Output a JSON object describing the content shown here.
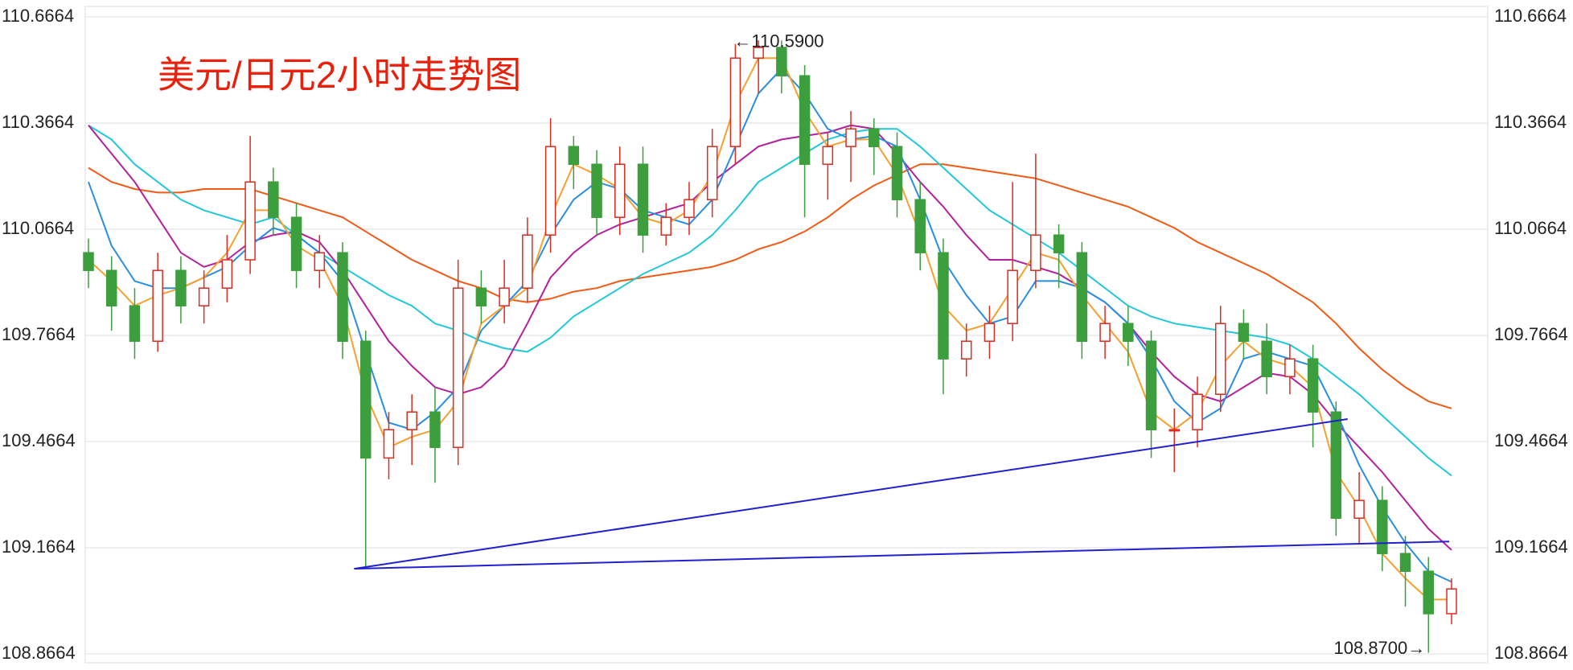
{
  "chart_data": {
    "type": "candlestick",
    "title": "美元/日元2小时走势图",
    "ylim": [
      108.8664,
      110.6664
    ],
    "yticks": [
      108.8664,
      109.1664,
      109.4664,
      109.7664,
      110.0664,
      110.3664,
      110.6664
    ],
    "xlim": [
      0,
      59
    ],
    "grid": true,
    "up_color": "#e02a1e",
    "down_color": "#3c9e3c",
    "open": [
      110.0,
      109.95,
      109.85,
      109.75,
      109.95,
      109.85,
      109.9,
      109.98,
      110.2,
      110.1,
      109.95,
      110.0,
      109.75,
      109.42,
      109.5,
      109.55,
      109.45,
      109.9,
      109.85,
      109.9,
      110.05,
      110.3,
      110.25,
      110.1,
      110.25,
      110.05,
      110.1,
      110.15,
      110.3,
      110.55,
      110.58,
      110.5,
      110.25,
      110.3,
      110.35,
      110.3,
      110.15,
      110.0,
      109.7,
      109.75,
      109.8,
      109.95,
      110.05,
      110.0,
      109.75,
      109.8,
      109.75,
      109.5,
      109.5,
      109.6,
      109.8,
      109.75,
      109.65,
      109.7,
      109.55,
      109.25,
      109.3,
      109.15,
      109.1,
      108.98
    ],
    "high": [
      110.04,
      109.99,
      109.9,
      110.0,
      109.99,
      109.95,
      110.05,
      110.33,
      110.24,
      110.14,
      110.05,
      110.03,
      109.78,
      109.55,
      109.6,
      109.62,
      109.98,
      109.95,
      109.98,
      110.1,
      110.38,
      110.33,
      110.29,
      110.3,
      110.3,
      110.14,
      110.2,
      110.35,
      110.59,
      110.6,
      110.6,
      110.53,
      110.34,
      110.4,
      110.38,
      110.34,
      110.2,
      110.04,
      109.8,
      109.85,
      110.2,
      110.28,
      110.08,
      110.03,
      109.85,
      109.85,
      109.78,
      109.56,
      109.65,
      109.85,
      109.84,
      109.8,
      109.74,
      109.74,
      109.58,
      109.38,
      109.34,
      109.2,
      109.14,
      109.08
    ],
    "low": [
      109.9,
      109.78,
      109.7,
      109.72,
      109.8,
      109.8,
      109.86,
      109.94,
      110.05,
      109.9,
      109.9,
      109.7,
      109.11,
      109.36,
      109.4,
      109.35,
      109.4,
      109.8,
      109.8,
      109.86,
      110.0,
      110.18,
      110.05,
      110.05,
      110.0,
      110.02,
      110.05,
      110.1,
      110.25,
      110.45,
      110.45,
      110.1,
      110.15,
      110.2,
      110.22,
      110.1,
      109.95,
      109.6,
      109.65,
      109.7,
      109.75,
      109.9,
      109.9,
      109.7,
      109.7,
      109.68,
      109.42,
      109.38,
      109.45,
      109.55,
      109.7,
      109.6,
      109.6,
      109.45,
      109.2,
      109.18,
      109.1,
      109.0,
      108.87,
      108.95
    ],
    "close": [
      109.95,
      109.85,
      109.75,
      109.95,
      109.85,
      109.9,
      109.98,
      110.2,
      110.1,
      109.95,
      110.0,
      109.75,
      109.42,
      109.5,
      109.55,
      109.45,
      109.9,
      109.85,
      109.9,
      110.05,
      110.3,
      110.25,
      110.1,
      110.25,
      110.05,
      110.1,
      110.15,
      110.3,
      110.55,
      110.58,
      110.5,
      110.25,
      110.3,
      110.35,
      110.3,
      110.15,
      110.0,
      109.7,
      109.75,
      109.8,
      109.95,
      110.05,
      110.0,
      109.75,
      109.8,
      109.75,
      109.5,
      109.5,
      109.6,
      109.8,
      109.75,
      109.65,
      109.7,
      109.55,
      109.25,
      109.3,
      109.15,
      109.1,
      108.98,
      109.05
    ],
    "series": [
      {
        "color": "#f05a14",
        "values": [
          110.24,
          110.2,
          110.18,
          110.17,
          110.17,
          110.18,
          110.18,
          110.18,
          110.16,
          110.14,
          110.12,
          110.1,
          110.06,
          110.02,
          109.98,
          109.95,
          109.92,
          109.9,
          109.87,
          109.86,
          109.87,
          109.89,
          109.9,
          109.92,
          109.93,
          109.94,
          109.95,
          109.96,
          109.98,
          110.01,
          110.03,
          110.06,
          110.1,
          110.15,
          110.19,
          110.22,
          110.25,
          110.25,
          110.24,
          110.23,
          110.22,
          110.21,
          110.19,
          110.17,
          110.15,
          110.13,
          110.1,
          110.07,
          110.03,
          110.0,
          109.97,
          109.94,
          109.9,
          109.86,
          109.8,
          109.73,
          109.67,
          109.62,
          109.58,
          109.56
        ]
      },
      {
        "color": "#22c8d8",
        "values": [
          110.36,
          110.32,
          110.25,
          110.2,
          110.15,
          110.12,
          110.1,
          110.08,
          110.1,
          110.05,
          110.0,
          109.96,
          109.92,
          109.88,
          109.85,
          109.8,
          109.78,
          109.75,
          109.73,
          109.72,
          109.76,
          109.82,
          109.86,
          109.9,
          109.94,
          109.97,
          110.0,
          110.05,
          110.12,
          110.2,
          110.24,
          110.28,
          110.32,
          110.34,
          110.35,
          110.35,
          110.3,
          110.24,
          110.18,
          110.12,
          110.08,
          110.04,
          110.0,
          109.95,
          109.9,
          109.85,
          109.82,
          109.8,
          109.79,
          109.78,
          109.77,
          109.76,
          109.74,
          109.7,
          109.65,
          109.6,
          109.54,
          109.48,
          109.42,
          109.37
        ]
      },
      {
        "color": "#b4209c",
        "values": [
          110.36,
          110.28,
          110.2,
          110.1,
          110.0,
          109.96,
          109.98,
          110.03,
          110.05,
          110.06,
          110.03,
          109.95,
          109.85,
          109.75,
          109.68,
          109.62,
          109.6,
          109.62,
          109.68,
          109.8,
          109.93,
          110.0,
          110.05,
          110.08,
          110.1,
          110.12,
          110.14,
          110.2,
          110.25,
          110.3,
          110.32,
          110.33,
          110.34,
          110.36,
          110.35,
          110.28,
          110.2,
          110.13,
          110.05,
          109.98,
          109.98,
          109.96,
          109.94,
          109.9,
          109.86,
          109.8,
          109.72,
          109.65,
          109.6,
          109.58,
          109.62,
          109.66,
          109.65,
          109.6,
          109.52,
          109.45,
          109.38,
          109.3,
          109.22,
          109.16
        ]
      },
      {
        "color": "#2a8ee0",
        "values": [
          110.2,
          110.02,
          109.92,
          109.9,
          109.9,
          109.93,
          109.96,
          110.02,
          110.07,
          110.05,
          110.0,
          109.92,
          109.72,
          109.52,
          109.5,
          109.55,
          109.62,
          109.78,
          109.85,
          109.92,
          110.05,
          110.15,
          110.2,
          110.18,
          110.12,
          110.1,
          110.08,
          110.15,
          110.3,
          110.45,
          110.52,
          110.45,
          110.35,
          110.32,
          110.33,
          110.3,
          110.15,
          109.98,
          109.88,
          109.8,
          109.82,
          109.92,
          109.92,
          109.9,
          109.86,
          109.8,
          109.7,
          109.58,
          109.52,
          109.56,
          109.7,
          109.72,
          109.7,
          109.68,
          109.55,
          109.4,
          109.28,
          109.18,
          109.1,
          109.07
        ]
      },
      {
        "color": "#f5a030",
        "values": [
          109.98,
          109.92,
          109.85,
          109.88,
          109.9,
          109.93,
          110.0,
          110.12,
          110.12,
          110.02,
          109.98,
          109.85,
          109.6,
          109.45,
          109.48,
          109.5,
          109.58,
          109.8,
          109.85,
          109.9,
          110.1,
          110.25,
          110.22,
          110.18,
          110.1,
          110.08,
          110.12,
          110.22,
          110.42,
          110.55,
          110.55,
          110.4,
          110.3,
          110.32,
          110.32,
          110.22,
          110.05,
          109.85,
          109.78,
          109.8,
          109.9,
          110.0,
          109.98,
          109.88,
          109.8,
          109.72,
          109.55,
          109.5,
          109.55,
          109.68,
          109.75,
          109.7,
          109.68,
          109.62,
          109.38,
          109.28,
          109.15,
          109.08,
          109.02,
          109.02
        ]
      }
    ],
    "trendlines": [
      {
        "color": "#2020d0",
        "x": [
          11.5,
          54.5
        ],
        "y": [
          109.107,
          109.53
        ]
      },
      {
        "color": "#2020d0",
        "x": [
          11.5,
          58.9
        ],
        "y": [
          109.107,
          109.184
        ]
      }
    ],
    "annotations": [
      {
        "text": "←110.5900",
        "x": 28,
        "y": 110.59
      },
      {
        "text": "108.8700→",
        "x": 58,
        "y": 108.87
      }
    ]
  }
}
